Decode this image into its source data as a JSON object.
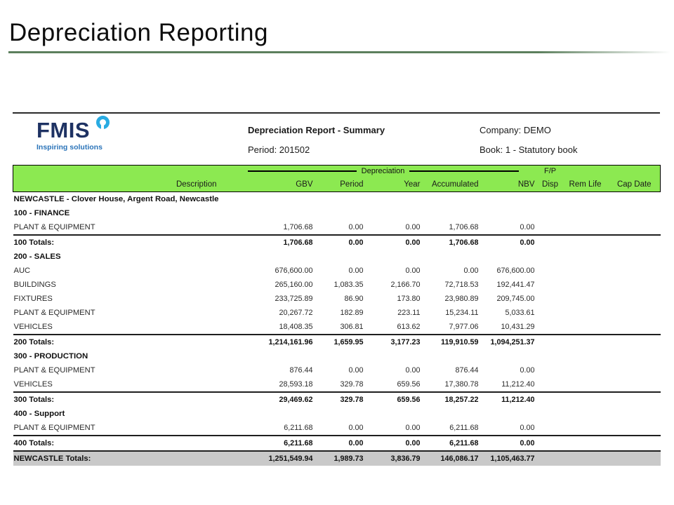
{
  "slide": {
    "title": "Depreciation Reporting"
  },
  "report": {
    "logo": {
      "brand": "FMIS",
      "tagline": "Inspiring solutions",
      "brand_color": "#1e3263",
      "icon_color": "#29abe2"
    },
    "header": {
      "title": "Depreciation Report - Summary",
      "period": "Period: 201502",
      "company": "Company: DEMO",
      "book": "Book: 1 - Statutory book"
    },
    "table": {
      "band_color": "#8ce951",
      "site_totals_band_color": "#c9c9c9",
      "group_header": {
        "depreciation_label": "Depreciation",
        "fp_label": "F/P"
      },
      "columns": [
        "Description",
        "GBV",
        "Period",
        "Year",
        "Accumulated",
        "NBV",
        "Disp",
        "Rem Life",
        "Cap Date"
      ],
      "rows": [
        {
          "type": "site",
          "description": "NEWCASTLE - Clover House, Argent Road, Newcastle",
          "values": [
            "",
            "",
            "",
            "",
            ""
          ]
        },
        {
          "type": "section",
          "description": "100 - FINANCE",
          "values": [
            "",
            "",
            "",
            "",
            ""
          ]
        },
        {
          "type": "data",
          "description": "PLANT & EQUIPMENT",
          "values": [
            "1,706.68",
            "0.00",
            "0.00",
            "1,706.68",
            "0.00"
          ]
        },
        {
          "type": "totals",
          "description": "100 Totals:",
          "values": [
            "1,706.68",
            "0.00",
            "0.00",
            "1,706.68",
            "0.00"
          ]
        },
        {
          "type": "section",
          "description": "200 - SALES",
          "values": [
            "",
            "",
            "",
            "",
            ""
          ]
        },
        {
          "type": "data",
          "description": "AUC",
          "values": [
            "676,600.00",
            "0.00",
            "0.00",
            "0.00",
            "676,600.00"
          ]
        },
        {
          "type": "data",
          "description": "BUILDINGS",
          "values": [
            "265,160.00",
            "1,083.35",
            "2,166.70",
            "72,718.53",
            "192,441.47"
          ]
        },
        {
          "type": "data",
          "description": "FIXTURES",
          "values": [
            "233,725.89",
            "86.90",
            "173.80",
            "23,980.89",
            "209,745.00"
          ]
        },
        {
          "type": "data",
          "description": "PLANT & EQUIPMENT",
          "values": [
            "20,267.72",
            "182.89",
            "223.11",
            "15,234.11",
            "5,033.61"
          ]
        },
        {
          "type": "data",
          "description": "VEHICLES",
          "values": [
            "18,408.35",
            "306.81",
            "613.62",
            "7,977.06",
            "10,431.29"
          ]
        },
        {
          "type": "totals",
          "description": "200 Totals:",
          "values": [
            "1,214,161.96",
            "1,659.95",
            "3,177.23",
            "119,910.59",
            "1,094,251.37"
          ]
        },
        {
          "type": "section",
          "description": "300 - PRODUCTION",
          "values": [
            "",
            "",
            "",
            "",
            ""
          ]
        },
        {
          "type": "data",
          "description": "PLANT & EQUIPMENT",
          "values": [
            "876.44",
            "0.00",
            "0.00",
            "876.44",
            "0.00"
          ]
        },
        {
          "type": "data",
          "description": "VEHICLES",
          "values": [
            "28,593.18",
            "329.78",
            "659.56",
            "17,380.78",
            "11,212.40"
          ]
        },
        {
          "type": "totals",
          "description": "300 Totals:",
          "values": [
            "29,469.62",
            "329.78",
            "659.56",
            "18,257.22",
            "11,212.40"
          ]
        },
        {
          "type": "section",
          "description": "400 - Support",
          "values": [
            "",
            "",
            "",
            "",
            ""
          ]
        },
        {
          "type": "data",
          "description": "PLANT & EQUIPMENT",
          "values": [
            "6,211.68",
            "0.00",
            "0.00",
            "6,211.68",
            "0.00"
          ]
        },
        {
          "type": "totals",
          "description": "400 Totals:",
          "values": [
            "6,211.68",
            "0.00",
            "0.00",
            "6,211.68",
            "0.00"
          ]
        },
        {
          "type": "site_totals",
          "description": "NEWCASTLE Totals:",
          "values": [
            "1,251,549.94",
            "1,989.73",
            "3,836.79",
            "146,086.17",
            "1,105,463.77"
          ]
        }
      ]
    }
  }
}
